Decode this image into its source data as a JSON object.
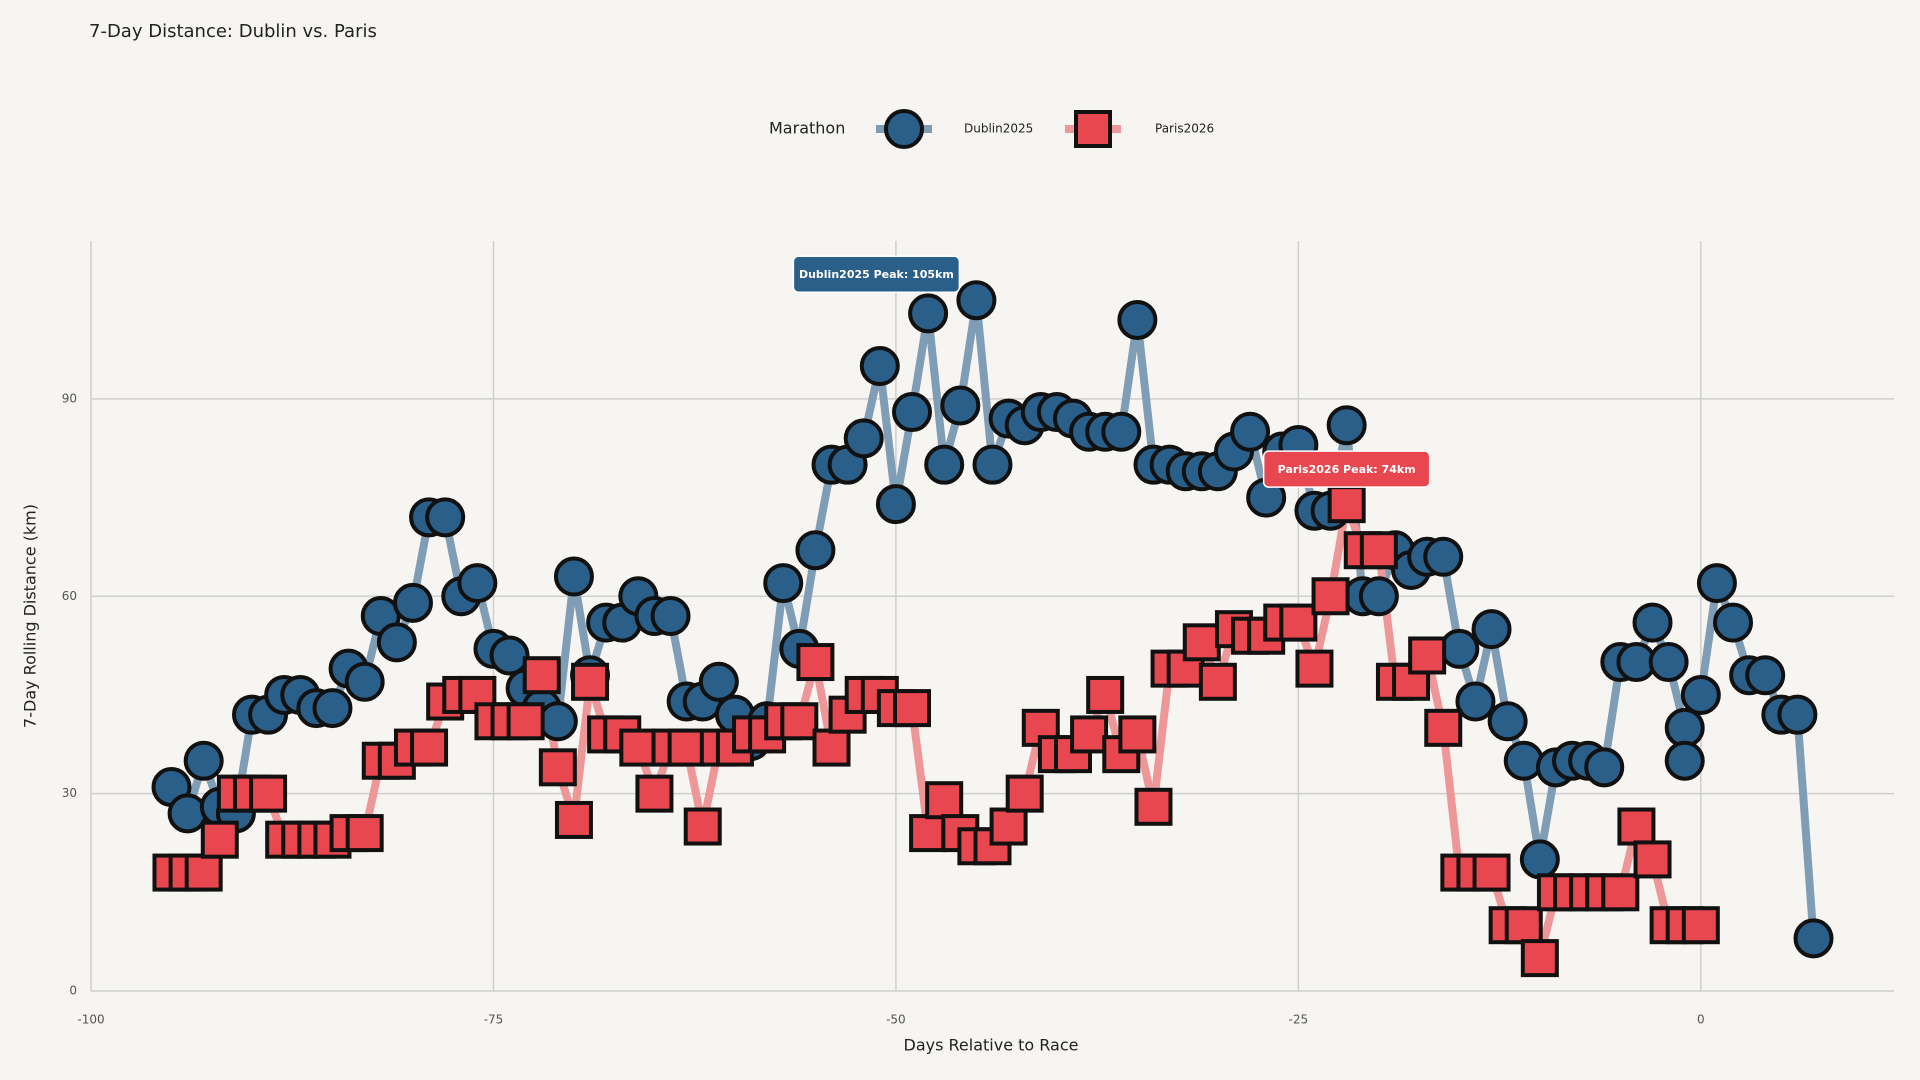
{
  "chart_data": {
    "type": "line",
    "title": "7-Day Distance: Dublin vs. Paris",
    "x_label": "Days Relative to Race",
    "y_label": "7-Day Rolling Distance (km)",
    "legend_title": "Marathon",
    "xlim": [
      -100,
      12
    ],
    "ylim": [
      0,
      114
    ],
    "xticks": [
      -100,
      -75,
      -50,
      -25,
      0
    ],
    "yticks": [
      0,
      30,
      60,
      90
    ],
    "grid": true,
    "series": [
      {
        "name": "Dublin2025",
        "color": "#2a5f8a",
        "line_color": "#7f9db5",
        "marker": "circle",
        "annotation": "Dublin2025 Peak: 105km",
        "x": [
          -95,
          -94,
          -93,
          -92,
          -91,
          -90,
          -89,
          -88,
          -87,
          -86,
          -85,
          -84,
          -83,
          -82,
          -81,
          -80,
          -79,
          -78,
          -77,
          -76,
          -75,
          -74,
          -73,
          -72,
          -71,
          -70,
          -69,
          -68,
          -67,
          -66,
          -65,
          -64,
          -63,
          -62,
          -61,
          -60,
          -59,
          -58,
          -57,
          -56,
          -55,
          -54,
          -53,
          -52,
          -51,
          -50,
          -49,
          -48,
          -47,
          -46,
          -45,
          -44,
          -43,
          -42,
          -41,
          -40,
          -39,
          -38,
          -37,
          -36,
          -35,
          -34,
          -33,
          -32,
          -31,
          -30,
          -29,
          -28,
          -27,
          -26,
          -25,
          -24,
          -23,
          -22,
          -21,
          -20,
          -19,
          -18,
          -17,
          -16,
          -15,
          -14,
          -13,
          -12,
          -11,
          -10,
          -9,
          -8,
          -7,
          -6,
          -5,
          -4,
          -3,
          -2,
          -1,
          -1,
          0,
          1,
          2,
          3,
          4,
          5,
          6,
          7
        ],
        "values": [
          31,
          27,
          35,
          28,
          27,
          42,
          42,
          45,
          45,
          43,
          43,
          49,
          47,
          57,
          53,
          59,
          72,
          72,
          60,
          62,
          52,
          51,
          46,
          43,
          41,
          63,
          48,
          56,
          56,
          60,
          57,
          57,
          44,
          44,
          47,
          42,
          38,
          41,
          62,
          52,
          67,
          80,
          80,
          84,
          95,
          74,
          88,
          103,
          80,
          89,
          105,
          80,
          87,
          86,
          88,
          88,
          87,
          85,
          85,
          85,
          102,
          80,
          80,
          79,
          79,
          79,
          82,
          85,
          75,
          82,
          83,
          73,
          73,
          86,
          60,
          60,
          67,
          64,
          66,
          66,
          52,
          44,
          55,
          41,
          35,
          20,
          34,
          35,
          35,
          34,
          50,
          50,
          56,
          50,
          40,
          35,
          45,
          62,
          56,
          48,
          48,
          42,
          42,
          8
        ]
      },
      {
        "name": "Paris2026",
        "color": "#e8474f",
        "line_color": "#ee9799",
        "marker": "square",
        "annotation": "Paris2026 Peak: 74km",
        "x": [
          -95,
          -94,
          -93,
          -92,
          -91,
          -90,
          -89,
          -88,
          -87,
          -86,
          -85,
          -84,
          -83,
          -82,
          -81,
          -80,
          -79,
          -78,
          -77,
          -76,
          -75,
          -74,
          -73,
          -72,
          -71,
          -70,
          -69,
          -68,
          -67,
          -66,
          -65,
          -64,
          -63,
          -62,
          -61,
          -60,
          -59,
          -58,
          -57,
          -56,
          -55,
          -54,
          -53,
          -52,
          -51,
          -50,
          -49,
          -48,
          -47,
          -46,
          -45,
          -44,
          -43,
          -42,
          -41,
          -40,
          -39,
          -38,
          -37,
          -36,
          -35,
          -34,
          -33,
          -32,
          -31,
          -30,
          -29,
          -28,
          -27,
          -26,
          -25,
          -24,
          -23,
          -22,
          -21,
          -20,
          -19,
          -18,
          -17,
          -16,
          -15,
          -14,
          -13,
          -12,
          -11,
          -10,
          -9,
          -8,
          -7,
          -6,
          -5,
          -4,
          -3,
          -2,
          -1,
          0
        ],
        "values": [
          18,
          18,
          18,
          23,
          30,
          30,
          30,
          23,
          23,
          23,
          23,
          24,
          24,
          35,
          35,
          37,
          37,
          44,
          45,
          45,
          41,
          41,
          41,
          48,
          34,
          26,
          47,
          39,
          39,
          37,
          30,
          37,
          37,
          25,
          37,
          37,
          39,
          39,
          41,
          41,
          50,
          37,
          42,
          45,
          45,
          43,
          43,
          24,
          29,
          24,
          22,
          22,
          25,
          30,
          40,
          36,
          36,
          39,
          45,
          36,
          39,
          28,
          49,
          49,
          53,
          47,
          55,
          54,
          54,
          56,
          56,
          49,
          60,
          74,
          67,
          67,
          47,
          47,
          51,
          40,
          18,
          18,
          18,
          10,
          10,
          5,
          15,
          15,
          15,
          15,
          15,
          25,
          20,
          10,
          10,
          10
        ]
      }
    ]
  }
}
